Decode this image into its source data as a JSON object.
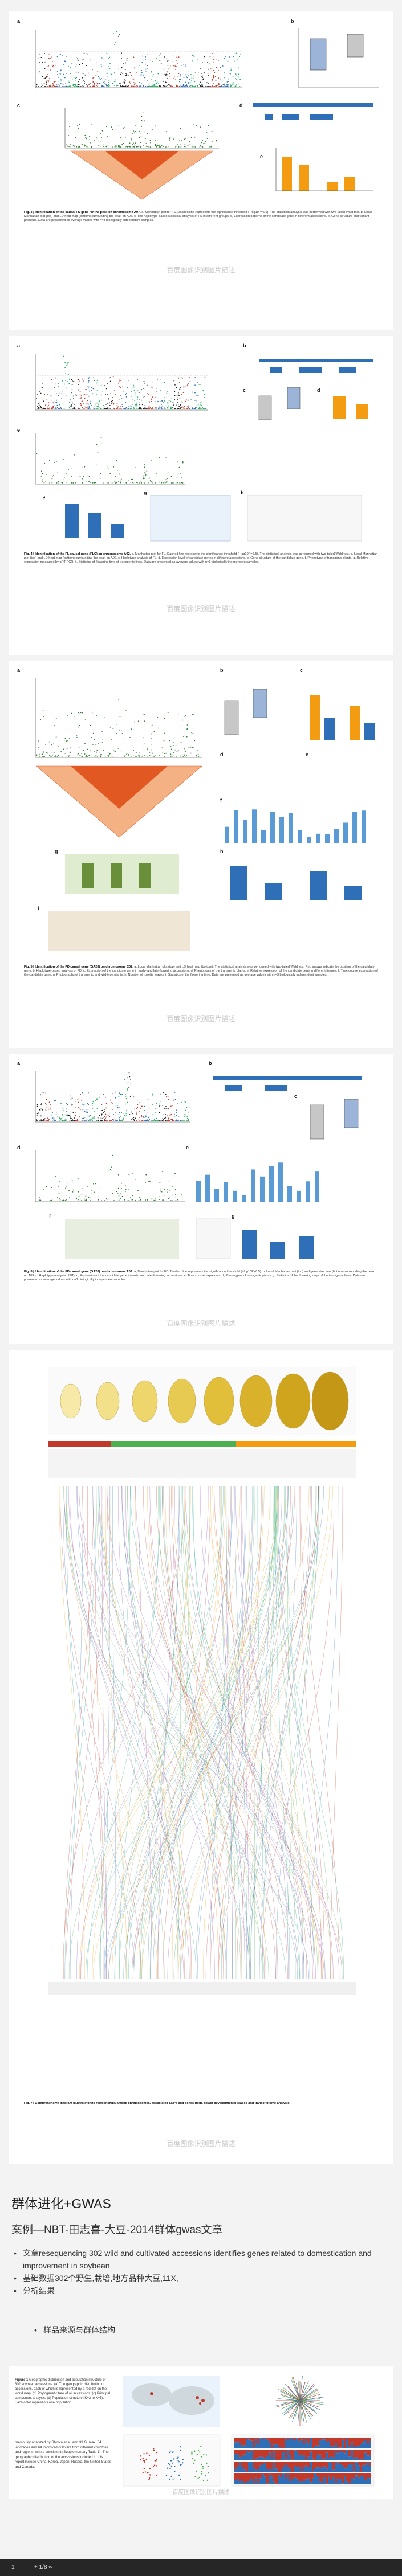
{
  "figures": [
    {
      "panel_labels": [
        "a",
        "b",
        "c",
        "d",
        "e"
      ],
      "chr_ticks": [
        "A01",
        "A02",
        "A03",
        "A04",
        "A05",
        "A06",
        "A07",
        "A08",
        "A09",
        "A10",
        "C01",
        "C02",
        "C03",
        "C04",
        "C05",
        "C06",
        "C07",
        "C08",
        "C09",
        "Scaffold"
      ],
      "caption_title": "Fig. 3 | Identification of the causal FS gene for the peak on chromosome A07.",
      "caption_text": "a, Manhattan plot for FS. Dashed line represents the significance threshold (−log10P=6.5). The statistical analysis was performed with two-tailed Wald test. b, Local Manhattan plot (top) and LD heat map (bottom) surrounding the peak on A07. c, The haplotype-based statistical analysis of FS in different groups. d, Expression patterns of the candidate gene in different accessions. e, Gene structure and variant positions. Data are presented as average values with n=3 biologically independent samples."
    },
    {
      "panel_labels": [
        "a",
        "b",
        "c",
        "d",
        "e",
        "f",
        "g",
        "h"
      ],
      "caption_title": "Fig. 4 | Identification of the FL causal gene (FLC) on chromosome A02.",
      "caption_text": "a, Manhattan plot for FL. Dashed line represents the significance threshold (−log10P=6.5). The statistical analysis was performed with two-tailed Wald test. b, Local Manhattan plot (top) and LD heat map (bottom) surrounding the peak on A02. c, Haplotype analysis of FL. d, Expression level of candidate genes in different accessions. e, Gene structure of the candidate gene. f, Phenotype of transgenic plants. g, Relative expression measured by qRT-PCR. h, Statistics of flowering time of transgenic lines. Data are presented as average values with n=3 biologically independent samples."
    },
    {
      "panel_labels": [
        "a",
        "b",
        "c",
        "d",
        "e",
        "f",
        "g",
        "h",
        "i"
      ],
      "caption_title": "Fig. 5 | Identification of the FD causal gene (GA20) on chromosome C07.",
      "caption_text": "a, Local Manhattan plot (top) and LD heat map (bottom). The statistical analysis was performed with two-tailed Wald test. Red arrows indicate the position of the candidate gene. b, Haplotype-based analysis of FD. c, Expression of the candidate gene in early- and late-flowering accessions. d, Phenotypes of the transgenic plants. e, Relative expression of the candidate gene in different tissues. f, Time course expression of the candidate gene. g, Photographs of transgenic and wild-type plants. h, Number of rosette leaves. i, Statistics of the flowering time. Data are presented as average values with n=3 biologically independent samples."
    },
    {
      "panel_labels": [
        "a",
        "b",
        "c",
        "d",
        "e",
        "f",
        "g"
      ],
      "caption_title": "Fig. 6 | Identification of the FD causal gene (GA20) on chromosome A09.",
      "caption_text": "a, Manhattan plot for FD. Dashed line represents the significance threshold (−log10P=6.5). b, Local Manhattan plot (top) and gene structure (bottom) surrounding the peak on A09. c, Haplotype analysis of FD. d, Expression of the candidate gene in early- and late-flowering accessions. e, Time course expression. f, Phenotypes of transgenic plants. g, Statistics of the flowering days of the transgenic lines. Data are presented as average values with n=3 biologically independent samples."
    },
    {
      "caption_title": "Fig. 7 | Comprehensive diagram illustrating the relationships among chromosomes, associated SNPs and genes (red), flower developmental stages and transcriptome analysis.",
      "caption_text": ""
    }
  ],
  "watermark": "百度图像识别图片描述",
  "section": {
    "title": "群体进化+GWAS",
    "subtitle": "案例—NBT-田志喜-大豆-2014群体gwas文章",
    "bullets": [
      "文章resequencing 302 wild and cultivated accessions identifies genes related to domestication and improvement in soybean",
      "基础数据302个野生,栽培,地方品种大豆,11X,",
      "分析结果"
    ],
    "sub_bullet": "样品来源与群体结构"
  },
  "paper_figure": {
    "caption_title": "Figure 1",
    "caption_text": "Geographic distribution and population structure of 302 soybean accessions. (a) The geographic distribution of accessions, each of which is represented by a red dot on the world map. (b) Phylogenetic tree of all accessions. (c) Principal component analysis. (d) Population structure (K=2 to K=5). Each color represents one population.",
    "body_text": "previously analyzed by Shirota et al. and 39 G. max. 84 landraces and 64 improved cultivars from different countries and regions, with a consistent (Supplementary Table 1). The geographic distribution of the accessions included in this report include China, Korea, Japan, Russia, the United States and Canada."
  },
  "bottom_bar": {
    "page_label": "1",
    "zoom_label": "+ 1/8 ∞"
  },
  "colors": {
    "accent_red": "#c0392b",
    "accent_blue": "#2e6fb7",
    "orange": "#f39c12",
    "green": "#4caf50",
    "bg": "#f3f3f3"
  }
}
